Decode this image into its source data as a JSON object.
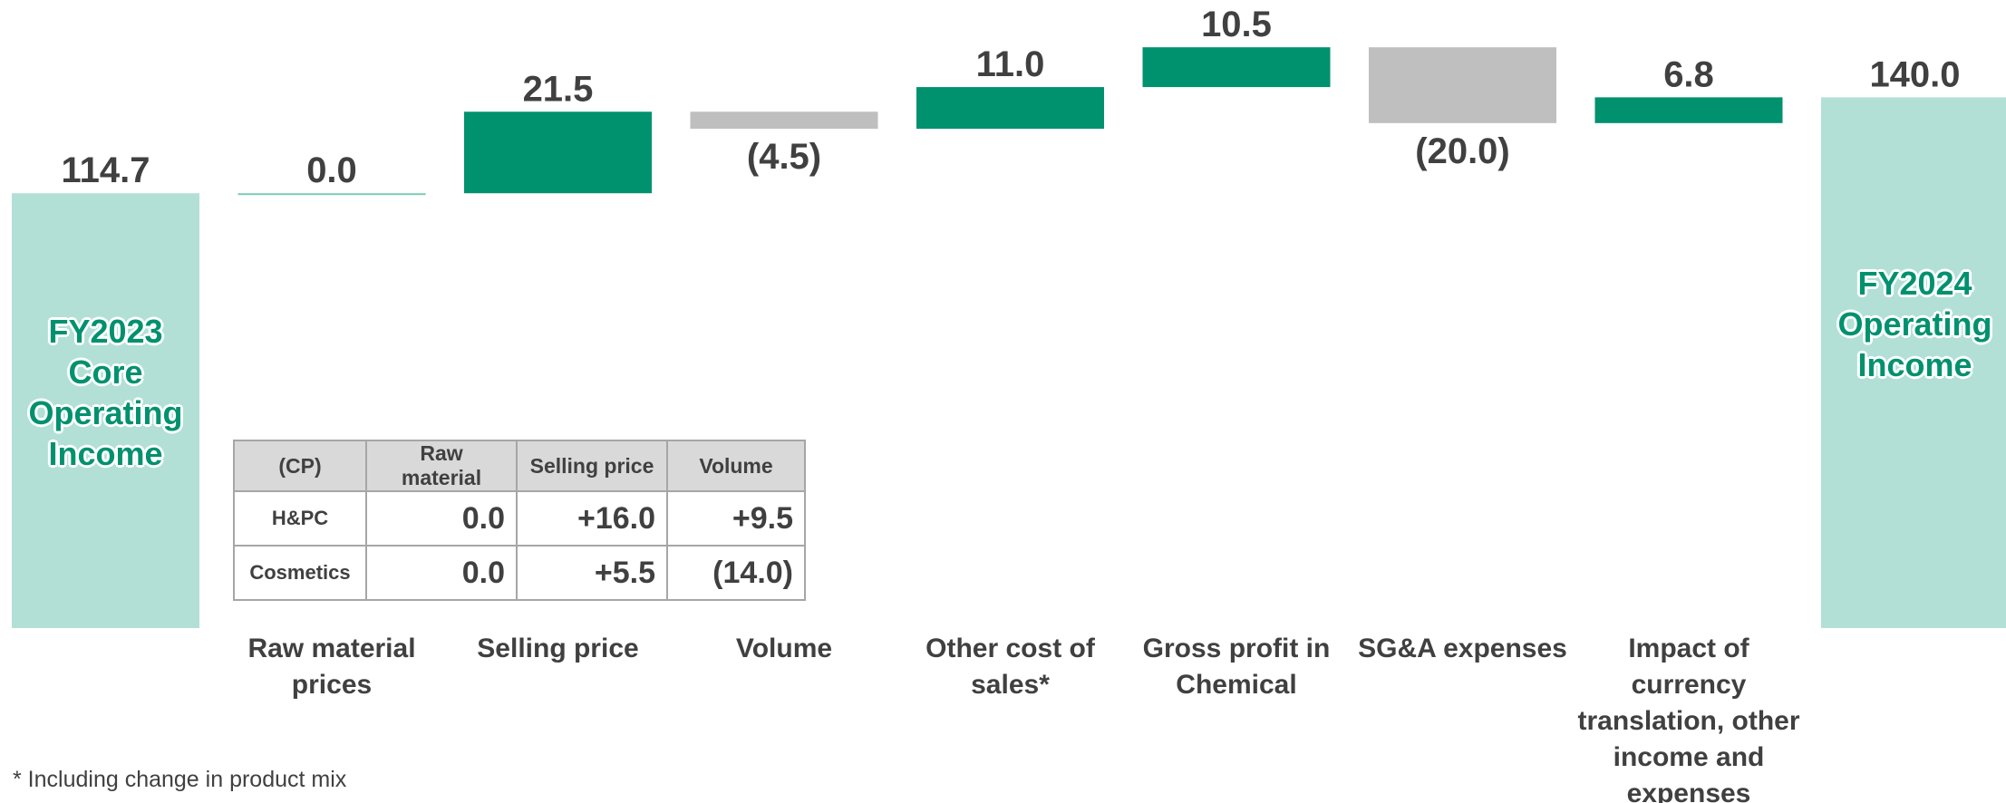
{
  "chart_data": {
    "type": "waterfall",
    "categories": [
      "FY2023 Core Operating Income",
      "Raw material prices",
      "Selling price",
      "Volume",
      "Other cost of sales*",
      "Gross profit in Chemical",
      "SG&A expenses",
      "Impact of currency translation, other income and expenses",
      "FY2024 Operating Income"
    ],
    "values": [
      114.7,
      0.0,
      21.5,
      -4.5,
      11.0,
      10.5,
      -20.0,
      6.8,
      140.0
    ],
    "value_labels": [
      "114.7",
      "0.0",
      "21.5",
      "(4.5)",
      "11.0",
      "10.5",
      "(20.0)",
      "6.8",
      "140.0"
    ],
    "measure": [
      "total",
      "relative",
      "relative",
      "relative",
      "relative",
      "relative",
      "relative",
      "relative",
      "total"
    ],
    "total_color": "#b2e0d6",
    "increase_color": "#00916e",
    "decrease_color": "#bfbfbf",
    "zero_color": "#7ccab5"
  },
  "table": {
    "header": [
      "(CP)",
      "Raw material",
      "Selling price",
      "Volume"
    ],
    "rows": [
      [
        "H&PC",
        "0.0",
        "+16.0",
        "+9.5"
      ],
      [
        "Cosmetics",
        "0.0",
        "+5.5",
        "(14.0)"
      ]
    ]
  },
  "footnote": "* Including change in product mix"
}
